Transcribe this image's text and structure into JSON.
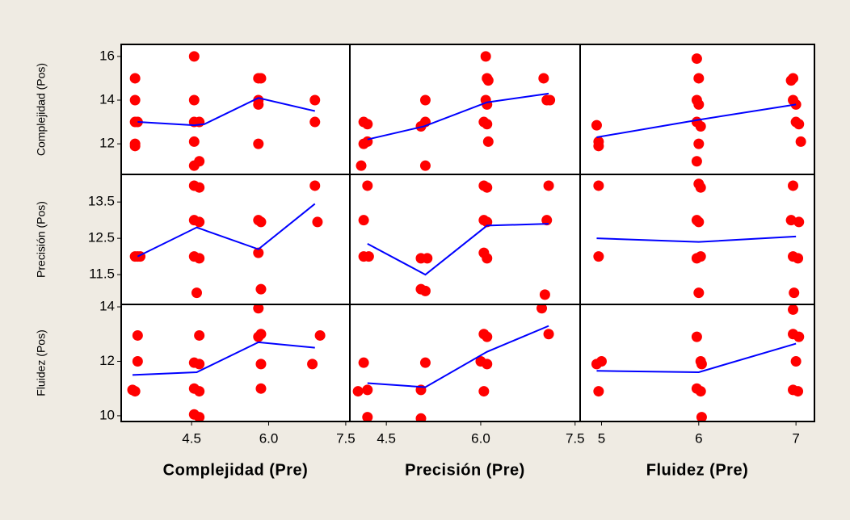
{
  "chart_data": [
    {
      "type": "scatter",
      "ylabel": "Complejidad (Pos)",
      "xlim": [
        3.13,
        7.58
      ],
      "ylim": [
        10.6,
        16.55
      ],
      "yticks": [
        12,
        14,
        16
      ],
      "series": [
        {
          "color": "#ff0000",
          "x": [
            3.4,
            3.4,
            3.4,
            3.45,
            3.4,
            3.4,
            4.55,
            4.55,
            4.55,
            4.65,
            4.55,
            4.55,
            4.65,
            5.8,
            5.85,
            5.8,
            5.8,
            5.8,
            6.9,
            6.9
          ],
          "values": [
            15,
            14,
            13,
            13,
            12,
            11.9,
            16,
            14,
            13,
            13,
            12.1,
            11,
            11.2,
            15,
            15,
            14,
            13.8,
            12,
            14,
            13
          ]
        },
        {
          "type": "line",
          "color": "#0000ff",
          "x": [
            3.45,
            4.55,
            4.75,
            5.8,
            6.9
          ],
          "values": [
            13,
            12.85,
            12.9,
            14.1,
            13.5
          ]
        }
      ]
    },
    {
      "type": "scatter",
      "xlim": [
        3.92,
        7.58
      ],
      "ylim": [
        10.6,
        16.55
      ],
      "series": [
        {
          "color": "#ff0000",
          "x": [
            4.14,
            4.2,
            4.14,
            4.2,
            4.1,
            5.12,
            5.12,
            5.12,
            5.05,
            6.08,
            6.1,
            6.12,
            6.08,
            6.1,
            6.05,
            6.1,
            6.12,
            7.0,
            7.05,
            7.1
          ],
          "values": [
            13,
            12.9,
            12,
            12.1,
            11,
            13,
            14,
            11,
            12.8,
            16,
            15,
            14.9,
            14,
            13.8,
            13,
            12.9,
            12.1,
            15,
            14,
            14
          ]
        },
        {
          "type": "line",
          "color": "#0000ff",
          "x": [
            4.2,
            5.1,
            6.1,
            7.08
          ],
          "values": [
            12.2,
            12.8,
            13.9,
            14.3
          ]
        }
      ]
    },
    {
      "type": "scatter",
      "xlim": [
        4.78,
        7.19
      ],
      "ylim": [
        10.6,
        16.55
      ],
      "series": [
        {
          "color": "#ff0000",
          "x": [
            4.95,
            4.97,
            4.97,
            5.98,
            6.0,
            5.98,
            6.0,
            5.98,
            6.02,
            6.0,
            5.98,
            6.97,
            6.95,
            6.97,
            7.0,
            7.0,
            7.03,
            7.05
          ],
          "values": [
            12.85,
            12.1,
            11.9,
            15.9,
            15,
            14,
            13.8,
            13,
            12.8,
            12,
            11.2,
            15,
            14.9,
            14,
            13.8,
            13,
            12.9,
            12.1
          ]
        },
        {
          "type": "line",
          "color": "#0000ff",
          "x": [
            4.95,
            6,
            7
          ],
          "values": [
            12.3,
            13.1,
            13.8
          ]
        }
      ]
    },
    {
      "type": "scatter",
      "ylabel": "Precisión (Pos)",
      "xlim": [
        3.13,
        7.58
      ],
      "ylim": [
        10.68,
        14.26
      ],
      "yticks": [
        11.5,
        12.5,
        13.5
      ],
      "series": [
        {
          "color": "#ff0000",
          "x": [
            3.4,
            3.45,
            3.5,
            4.55,
            4.65,
            4.55,
            4.65,
            4.55,
            4.65,
            4.6,
            5.8,
            5.85,
            5.8,
            5.85,
            6.9,
            6.95
          ],
          "values": [
            12,
            12,
            12,
            13.95,
            13.9,
            13,
            12.95,
            12,
            11.95,
            11,
            13,
            12.95,
            12.1,
            11.1,
            13.95,
            12.95
          ]
        },
        {
          "type": "line",
          "color": "#0000ff",
          "x": [
            3.45,
            4.6,
            5.8,
            6.9
          ],
          "values": [
            12,
            12.8,
            12.2,
            13.45
          ]
        }
      ]
    },
    {
      "type": "scatter",
      "xlim": [
        3.92,
        7.58
      ],
      "ylim": [
        10.68,
        14.26
      ],
      "series": [
        {
          "color": "#ff0000",
          "x": [
            4.2,
            4.14,
            4.14,
            4.22,
            5.05,
            5.15,
            5.05,
            5.12,
            6.05,
            6.1,
            6.05,
            6.1,
            6.05,
            6.1,
            7.08,
            7.05,
            7.02
          ],
          "values": [
            13.95,
            13,
            12,
            12,
            11.95,
            11.95,
            11.1,
            11.05,
            13.95,
            13.9,
            13,
            12.95,
            12.1,
            11.95,
            13.95,
            13,
            10.95
          ]
        },
        {
          "type": "line",
          "color": "#0000ff",
          "x": [
            4.2,
            5.12,
            6.1,
            7.08
          ],
          "values": [
            12.35,
            11.5,
            12.85,
            12.9
          ]
        }
      ]
    },
    {
      "type": "scatter",
      "xlim": [
        4.78,
        7.19
      ],
      "ylim": [
        10.68,
        14.26
      ],
      "series": [
        {
          "color": "#ff0000",
          "x": [
            4.97,
            4.97,
            6.0,
            6.02,
            5.98,
            6.0,
            6.02,
            5.98,
            6.0,
            6.97,
            6.95,
            7.03,
            6.97,
            7.02,
            6.98
          ],
          "values": [
            13.95,
            12,
            14,
            13.9,
            13,
            12.95,
            12,
            11.95,
            11,
            13.95,
            13,
            12.95,
            12,
            11.95,
            11
          ]
        },
        {
          "type": "line",
          "color": "#0000ff",
          "x": [
            4.95,
            6,
            7
          ],
          "values": [
            12.5,
            12.4,
            12.55
          ]
        }
      ]
    },
    {
      "type": "scatter",
      "ylabel": "Fluidez (Pos)",
      "xlabel": "Complejidad (Pre)",
      "xlim": [
        3.13,
        7.58
      ],
      "ylim": [
        9.79,
        14.09
      ],
      "yticks": [
        10,
        12,
        14
      ],
      "xticks": [
        4.5,
        {
          "value": 6,
          "label": "6.0"
        },
        {
          "value": 7.5,
          "label": "7.5"
        }
      ],
      "series": [
        {
          "color": "#ff0000",
          "x": [
            3.45,
            3.45,
            3.35,
            3.4,
            4.65,
            4.55,
            4.65,
            4.55,
            4.65,
            4.55,
            4.65,
            5.8,
            5.85,
            5.8,
            5.85,
            5.85,
            7.0,
            6.85
          ],
          "values": [
            12.95,
            12,
            10.95,
            10.9,
            12.95,
            11.95,
            11.9,
            11,
            10.9,
            10.05,
            9.95,
            13.95,
            13,
            12.9,
            11.9,
            11,
            12.95,
            11.9
          ]
        },
        {
          "type": "line",
          "color": "#0000ff",
          "x": [
            3.35,
            4.6,
            5.8,
            6.9
          ],
          "values": [
            11.5,
            11.6,
            12.7,
            12.5
          ]
        }
      ]
    },
    {
      "type": "scatter",
      "xlabel": "Precisión (Pre)",
      "xlim": [
        3.92,
        7.58
      ],
      "ylim": [
        9.79,
        14.09
      ],
      "xticks": [
        4.5,
        {
          "value": 6,
          "label": "6.0"
        },
        {
          "value": 7.5,
          "label": "7.5"
        }
      ],
      "series": [
        {
          "color": "#ff0000",
          "x": [
            4.14,
            4.2,
            4.05,
            4.2,
            5.12,
            5.05,
            5.05,
            6.05,
            6.1,
            6.0,
            6.1,
            6.05,
            6.97,
            7.08
          ],
          "values": [
            11.95,
            10.95,
            10.9,
            9.95,
            11.95,
            10.95,
            9.9,
            13,
            12.9,
            12,
            11.9,
            10.9,
            13.95,
            13
          ]
        },
        {
          "type": "line",
          "color": "#0000ff",
          "x": [
            4.2,
            5.12,
            6.1,
            7.08
          ],
          "values": [
            11.2,
            11.05,
            12.35,
            13.3
          ]
        }
      ]
    },
    {
      "type": "scatter",
      "xlabel": "Fluidez (Pre)",
      "xlim": [
        4.78,
        7.19
      ],
      "ylim": [
        9.79,
        14.09
      ],
      "xticks": [
        5,
        6,
        7
      ],
      "series": [
        {
          "color": "#ff0000",
          "x": [
            5.0,
            4.95,
            4.97,
            5.98,
            6.02,
            6.03,
            5.98,
            6.02,
            6.03,
            6.97,
            6.97,
            7.03,
            7.0,
            6.97,
            7.02
          ],
          "values": [
            12,
            11.9,
            10.9,
            12.9,
            12,
            11.9,
            11,
            10.9,
            9.95,
            13.9,
            13,
            12.9,
            12,
            10.95,
            10.9
          ]
        },
        {
          "type": "line",
          "color": "#0000ff",
          "x": [
            4.95,
            6,
            7
          ],
          "values": [
            11.65,
            11.6,
            12.65
          ]
        }
      ]
    }
  ]
}
